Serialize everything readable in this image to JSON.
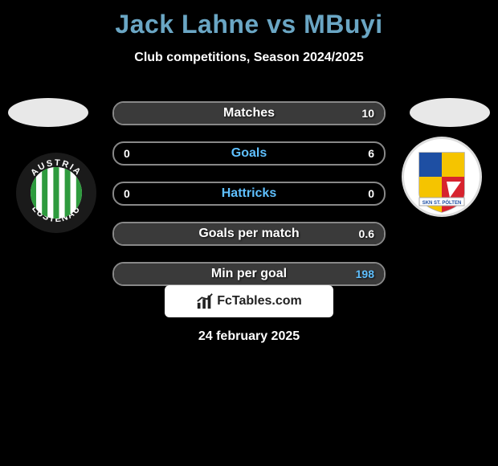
{
  "title": "Jack Lahne vs MBuyi",
  "subtitle": "Club competitions, Season 2024/2025",
  "date": "24 february 2025",
  "watermark_text": "FcTables.com",
  "title_color": "#6aa6c4",
  "title_fontsize": 32,
  "subtitle_color": "#ffffff",
  "subtitle_fontsize": 16,
  "date_color": "#ffffff",
  "date_fontsize": 16,
  "label_default_color": "#ffffff",
  "label_highlight_color": "#5fc0ff",
  "value_color": "#ffffff",
  "value_fontsize": 14,
  "label_fontsize": 16,
  "background_color": "#000000",
  "row_border_color": "#888888",
  "row_fill_color": "#3a3a3a",
  "player_oval_color": "#e8e8e8",
  "watermark_bg": "#ffffff",
  "watermark_text_color": "#222222",
  "badge_left": {
    "outer_ring_label_top": "AUSTRIA",
    "outer_ring_label_bottom": "LUSTENAU",
    "ring_color": "#1a1a1a",
    "ring_text_color": "#ffffff",
    "stripe_colors": [
      "#2e9b3e",
      "#ffffff"
    ],
    "stripe_count": 9
  },
  "badge_right": {
    "bottom_label": "SKN ST. PÖLTEN",
    "colors": {
      "blue": "#1e4fa3",
      "yellow": "#f5c400",
      "red": "#d7232e",
      "white": "#ffffff",
      "outline": "#aaaaaa"
    }
  },
  "stats": [
    {
      "label": "Matches",
      "left_value": "",
      "right_value": "10",
      "left_fill_pct": 0,
      "right_fill_pct": 100,
      "label_color": "#ffffff",
      "right_value_is_blue": false
    },
    {
      "label": "Goals",
      "left_value": "0",
      "right_value": "6",
      "left_fill_pct": 0,
      "right_fill_pct": 0,
      "label_color": "#5fc0ff",
      "right_value_is_blue": false
    },
    {
      "label": "Hattricks",
      "left_value": "0",
      "right_value": "0",
      "left_fill_pct": 0,
      "right_fill_pct": 0,
      "label_color": "#5fc0ff",
      "right_value_is_blue": false
    },
    {
      "label": "Goals per match",
      "left_value": "",
      "right_value": "0.6",
      "left_fill_pct": 0,
      "right_fill_pct": 100,
      "label_color": "#ffffff",
      "right_value_is_blue": false
    },
    {
      "label": "Min per goal",
      "left_value": "",
      "right_value": "198",
      "left_fill_pct": 100,
      "right_fill_pct": 0,
      "label_color": "#ffffff",
      "right_value_is_blue": true
    }
  ]
}
